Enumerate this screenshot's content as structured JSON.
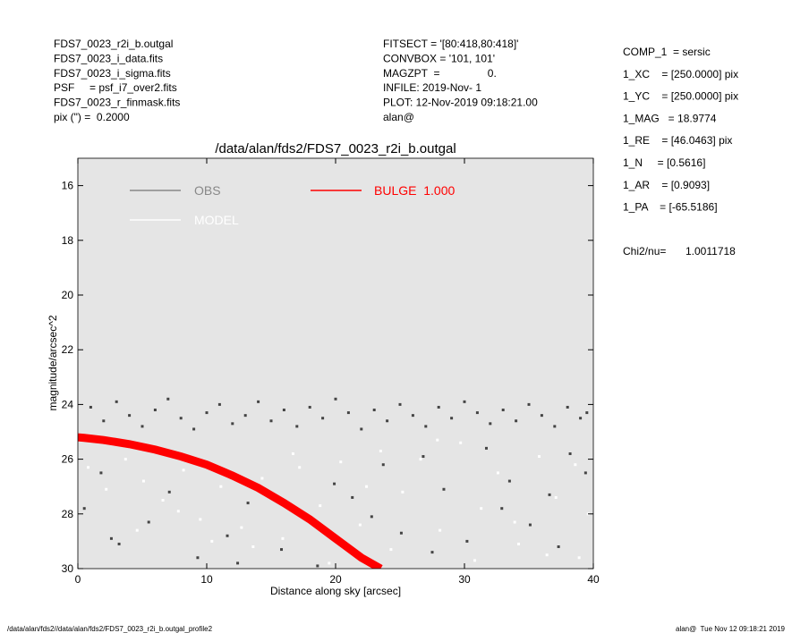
{
  "header_left": [
    "FDS7_0023_r2i_b.outgal",
    "FDS7_0023_i_data.fits",
    "FDS7_0023_i_sigma.fits",
    "PSF     = psf_i7_over2.fits",
    "FDS7_0023_r_finmask.fits",
    "pix (\") =  0.2000"
  ],
  "header_mid": [
    "FITSECT = '[80:418,80:418]'",
    "CONVBOX = '101, 101'",
    "MAGZPT  =                0.",
    "INFILE: 2019-Nov- 1",
    "PLOT: 12-Nov-2019 09:18:21.00",
    "alan@"
  ],
  "parameters": [
    "COMP_1  = sersic",
    "1_XC    = [250.0000] pix",
    "1_YC    = [250.0000] pix",
    "1_MAG   = 18.9774",
    "1_RE    = [46.0463] pix",
    "1_N     = [0.5616]",
    "1_AR    = [0.9093]",
    "1_PA    = [-65.5186]"
  ],
  "chi2": {
    "label": "Chi2/nu=",
    "value": "1.0011718"
  },
  "footer_left": "/data/alan/fds2//data/alan/fds2/FDS7_0023_r2i_b.outgal_profile2",
  "footer_right": "alan@  Tue Nov 12 09:18:21 2019",
  "chart_data": {
    "type": "scatter",
    "title": "/data/alan/fds2/FDS7_0023_r2i_b.outgal",
    "xlabel": "Distance along sky [arcsec]",
    "ylabel": "magnitude/arcsec^2",
    "xlim": [
      0,
      40
    ],
    "xticks": [
      0,
      10,
      20,
      30,
      40
    ],
    "ylim": [
      30,
      15
    ],
    "yticks": [
      16,
      18,
      20,
      22,
      24,
      26,
      28,
      30
    ],
    "background": "#e5e5e5",
    "series": [
      {
        "name": "OBS",
        "color": "#444444",
        "mode": "markers",
        "x": [
          1,
          2,
          3,
          4,
          5,
          6,
          7,
          8,
          9,
          10,
          11,
          12,
          13,
          14,
          15,
          16,
          17,
          18,
          19,
          20,
          21,
          22,
          23,
          24,
          25,
          26,
          27,
          28,
          29,
          30,
          31,
          32,
          33,
          34,
          35,
          36,
          37,
          38,
          39,
          39.5,
          0.5,
          1.8,
          3.2,
          5.5,
          7.1,
          9.3,
          11.6,
          13.2,
          15.8,
          17.4,
          19.9,
          21.3,
          23.7,
          25.1,
          26.8,
          28.4,
          30.2,
          31.7,
          33.5,
          35.1,
          36.6,
          38.2,
          39.4,
          2.6,
          12.4,
          22.8,
          27.5,
          32.9,
          37.3,
          18.6
        ],
        "values": [
          24.1,
          24.6,
          23.9,
          24.4,
          24.8,
          24.2,
          23.8,
          24.5,
          24.9,
          24.3,
          24.0,
          24.7,
          24.4,
          23.9,
          24.6,
          24.2,
          24.8,
          24.1,
          24.5,
          23.8,
          24.3,
          24.9,
          24.2,
          24.6,
          24.0,
          24.4,
          24.8,
          24.1,
          24.5,
          23.9,
          24.3,
          24.7,
          24.2,
          24.6,
          24.0,
          24.4,
          24.8,
          24.1,
          24.5,
          24.3,
          27.8,
          26.5,
          29.1,
          28.3,
          27.2,
          29.6,
          28.8,
          27.6,
          29.3,
          28.1,
          26.9,
          27.4,
          26.2,
          28.7,
          25.9,
          27.1,
          29.0,
          25.6,
          26.8,
          28.4,
          27.3,
          25.8,
          26.5,
          28.9,
          29.8,
          28.1,
          29.4,
          27.8,
          29.2,
          29.9
        ]
      },
      {
        "name": "MODEL",
        "color": "#ffffff",
        "mode": "markers",
        "x": [
          0.8,
          2.2,
          3.7,
          5.1,
          6.6,
          8.2,
          9.5,
          11.1,
          12.7,
          14.3,
          15.9,
          17.2,
          18.8,
          20.4,
          21.9,
          23.5,
          25.2,
          26.6,
          28.1,
          29.7,
          31.3,
          32.6,
          34.2,
          35.8,
          37.1,
          38.6,
          39.6,
          24.3,
          27.9,
          30.8,
          33.9,
          36.4,
          13.6,
          19.5,
          16.7,
          10.4,
          4.6,
          7.8,
          22.4,
          38.9
        ],
        "values": [
          26.3,
          27.1,
          26.0,
          26.8,
          27.5,
          26.4,
          28.2,
          27.0,
          28.5,
          26.7,
          28.9,
          26.3,
          27.7,
          26.1,
          28.4,
          25.7,
          27.2,
          26.0,
          28.6,
          25.4,
          27.8,
          26.5,
          29.1,
          25.9,
          27.4,
          26.2,
          28.0,
          29.3,
          25.3,
          29.7,
          28.3,
          29.5,
          29.2,
          29.8,
          25.8,
          29.0,
          28.6,
          27.9,
          27.0,
          29.6
        ]
      },
      {
        "name": "BULGE  1.000",
        "color": "#ff0000",
        "mode": "line",
        "x": [
          0,
          0.5,
          2,
          4,
          6,
          8,
          10,
          12,
          14,
          16,
          18,
          20,
          22,
          23.5
        ],
        "values": [
          25.2,
          25.22,
          25.3,
          25.45,
          25.65,
          25.9,
          26.2,
          26.6,
          27.05,
          27.6,
          28.2,
          28.9,
          29.6,
          30.0
        ]
      }
    ]
  }
}
